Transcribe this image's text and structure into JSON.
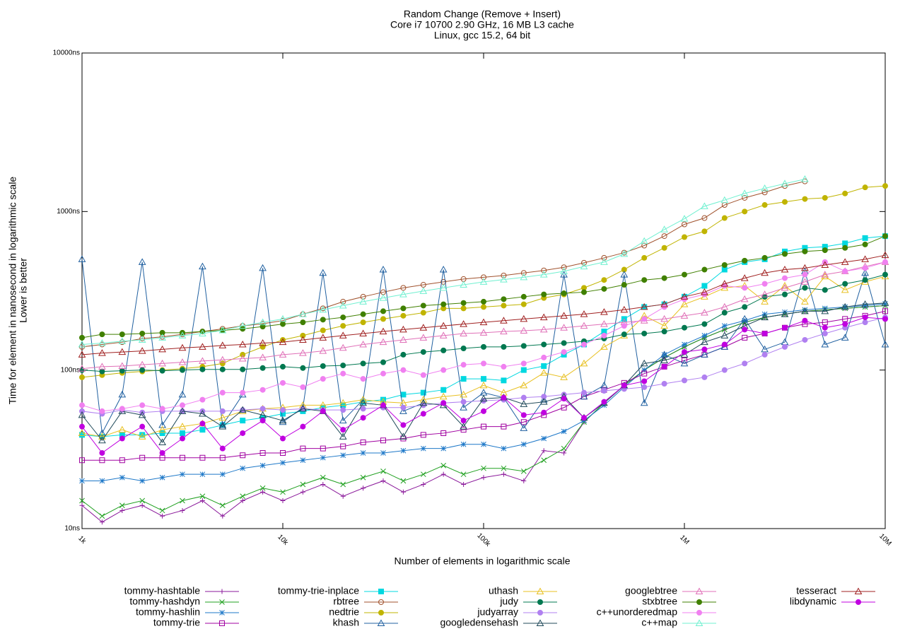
{
  "chart_data": {
    "type": "line",
    "title": [
      "Random Change (Remove + Insert)",
      "Core i7 10700 2.90 GHz, 16 MB L3 cache",
      "Linux, gcc 15.2, 64 bit"
    ],
    "xlabel": "Number of elements in logarithmic scale",
    "ylabel": [
      "Time for element in nanosecond in logarithmic scale",
      "Lower is better"
    ],
    "xlog": true,
    "ylog": true,
    "xlim": [
      1000,
      10000000
    ],
    "ylim": [
      10,
      10000
    ],
    "xticks": [
      {
        "value": 1000,
        "label": "1k"
      },
      {
        "value": 10000,
        "label": "10k"
      },
      {
        "value": 100000,
        "label": "100k"
      },
      {
        "value": 1000000,
        "label": "1M"
      },
      {
        "value": 10000000,
        "label": "10M"
      }
    ],
    "yticks": [
      {
        "value": 10,
        "label": "10ns"
      },
      {
        "value": 100,
        "label": "100ns"
      },
      {
        "value": 1000,
        "label": "1000ns"
      },
      {
        "value": 10000,
        "label": "10000ns"
      }
    ],
    "legend": "bottom",
    "x": [
      1000,
      1259,
      1585,
      1995,
      2512,
      3162,
      3981,
      5012,
      6310,
      7943,
      10000,
      12589,
      15849,
      19953,
      25119,
      31623,
      39811,
      50119,
      63096,
      79433,
      100000,
      125893,
      158489,
      199526,
      251189,
      316228,
      398107,
      501187,
      630957,
      794328,
      1000000,
      1258925,
      1584893,
      1995262,
      2511886,
      3162278,
      3981072,
      5011872,
      6309573,
      7943282,
      10000000
    ],
    "series": [
      {
        "name": "tommy-hashtable",
        "color": "#8b1a9b",
        "marker": "plus",
        "values": [
          14,
          11,
          13,
          14,
          12,
          13,
          15,
          12,
          15,
          17,
          15,
          17,
          19,
          16,
          18,
          20,
          17,
          19,
          22,
          19,
          21,
          22,
          20,
          31,
          30,
          47,
          62,
          80,
          100,
          120,
          140,
          160,
          180,
          200,
          215,
          225,
          235,
          240,
          245,
          250,
          255
        ]
      },
      {
        "name": "tommy-hashdyn",
        "color": "#20a020",
        "marker": "cross",
        "values": [
          15,
          12,
          14,
          15,
          13,
          15,
          16,
          14,
          16,
          18,
          17,
          19,
          21,
          19,
          21,
          23,
          20,
          22,
          25,
          22,
          24,
          24,
          23,
          27,
          32,
          47,
          62,
          80,
          100,
          120,
          140,
          160,
          180,
          200,
          215,
          225,
          235,
          240,
          245,
          250,
          255
        ]
      },
      {
        "name": "tommy-hashlin",
        "color": "#1e78c8",
        "marker": "star",
        "values": [
          20,
          20,
          21,
          20,
          21,
          22,
          22,
          22,
          24,
          25,
          26,
          27,
          28,
          29,
          30,
          30,
          31,
          32,
          32,
          34,
          34,
          32,
          34,
          37,
          41,
          48,
          60,
          78,
          100,
          125,
          145,
          165,
          190,
          205,
          225,
          232,
          240,
          245,
          250,
          255,
          262
        ]
      },
      {
        "name": "tommy-trie",
        "color": "#a000a0",
        "marker": "square",
        "values": [
          27,
          27,
          27,
          28,
          28,
          28,
          28,
          28,
          29,
          30,
          30,
          32,
          32,
          33,
          35,
          36,
          37,
          39,
          40,
          42,
          44,
          44,
          47,
          52,
          58,
          68,
          75,
          83,
          95,
          105,
          115,
          125,
          140,
          160,
          170,
          185,
          195,
          200,
          210,
          220,
          235
        ]
      },
      {
        "name": "tommy-trie-inplace",
        "color": "#00d8e0",
        "marker": "filled-square",
        "values": [
          39,
          38,
          39,
          39,
          40,
          40,
          42,
          45,
          48,
          50,
          53,
          55,
          58,
          60,
          63,
          65,
          70,
          72,
          75,
          88,
          88,
          86,
          100,
          106,
          125,
          145,
          175,
          210,
          250,
          260,
          290,
          340,
          430,
          480,
          500,
          560,
          590,
          600,
          630,
          680,
          700
        ]
      },
      {
        "name": "rbtree",
        "color": "#a0522d",
        "marker": "circle",
        "values": [
          140,
          145,
          150,
          158,
          162,
          168,
          175,
          182,
          190,
          196,
          205,
          225,
          245,
          270,
          290,
          310,
          330,
          345,
          360,
          375,
          385,
          395,
          410,
          425,
          445,
          475,
          510,
          550,
          610,
          700,
          830,
          910,
          1100,
          1220,
          1320,
          1450,
          1550,
          null,
          null,
          null,
          null
        ]
      },
      {
        "name": "nedtrie",
        "color": "#c0b400",
        "marker": "filled-circle",
        "values": [
          90,
          93,
          96,
          98,
          100,
          102,
          105,
          110,
          125,
          140,
          155,
          165,
          178,
          190,
          200,
          210,
          220,
          230,
          245,
          245,
          250,
          255,
          260,
          285,
          300,
          330,
          370,
          430,
          510,
          590,
          690,
          750,
          910,
          1000,
          1100,
          1150,
          1200,
          1220,
          1300,
          1420,
          1450
        ]
      },
      {
        "name": "khash",
        "color": "#2060a0",
        "marker": "triangle",
        "values": [
          500,
          40,
          70,
          480,
          45,
          70,
          450,
          45,
          70,
          440,
          47,
          58,
          410,
          48,
          65,
          430,
          55,
          62,
          430,
          58,
          72,
          67,
          43,
          65,
          400,
          68,
          80,
          400,
          62,
          125,
          110,
          125,
          140,
          210,
          135,
          150,
          420,
          145,
          160,
          410,
          145
        ]
      },
      {
        "name": "uthash",
        "color": "#e8c020",
        "marker": "triangle",
        "values": [
          40,
          38,
          42,
          38,
          42,
          44,
          46,
          50,
          55,
          57,
          58,
          60,
          60,
          62,
          65,
          63,
          62,
          65,
          68,
          70,
          80,
          72,
          80,
          96,
          90,
          110,
          140,
          165,
          220,
          190,
          260,
          290,
          330,
          340,
          270,
          340,
          270,
          390,
          320,
          360,
          390
        ]
      },
      {
        "name": "judy",
        "color": "#007850",
        "marker": "filled-circle",
        "values": [
          100,
          98,
          99,
          100,
          99,
          100,
          101,
          101,
          101,
          103,
          105,
          103,
          106,
          107,
          110,
          112,
          125,
          130,
          133,
          137,
          140,
          140,
          142,
          145,
          148,
          152,
          158,
          168,
          170,
          175,
          185,
          195,
          230,
          250,
          290,
          300,
          330,
          320,
          350,
          370,
          400
        ]
      },
      {
        "name": "judyarray",
        "color": "#b080f0",
        "marker": "filled-circle",
        "values": [
          55,
          53,
          56,
          54,
          55,
          55,
          55,
          55,
          56,
          57,
          56,
          57,
          56,
          56,
          57,
          58,
          58,
          60,
          62,
          63,
          64,
          65,
          67,
          68,
          70,
          72,
          74,
          76,
          78,
          82,
          86,
          90,
          100,
          110,
          125,
          140,
          155,
          170,
          185,
          200,
          215
        ]
      },
      {
        "name": "googledensehash",
        "color": "#204a5a",
        "marker": "triangle",
        "values": [
          52,
          36,
          55,
          52,
          35,
          55,
          53,
          44,
          56,
          52,
          48,
          57,
          55,
          38,
          62,
          60,
          38,
          62,
          60,
          44,
          66,
          67,
          61,
          63,
          68,
          50,
          62,
          80,
          110,
          115,
          125,
          150,
          165,
          190,
          215,
          225,
          235,
          235,
          250,
          260,
          265
        ]
      },
      {
        "name": "googlebtree",
        "color": "#e070b8",
        "marker": "triangle",
        "values": [
          102,
          105,
          106,
          108,
          110,
          112,
          114,
          116,
          118,
          120,
          125,
          128,
          132,
          138,
          145,
          150,
          155,
          160,
          165,
          170,
          172,
          175,
          177,
          180,
          185,
          190,
          195,
          200,
          205,
          210,
          220,
          230,
          250,
          280,
          300,
          330,
          360,
          400,
          420,
          450,
          480
        ]
      },
      {
        "name": "stxbtree",
        "color": "#408000",
        "marker": "filled-circle",
        "values": [
          160,
          168,
          168,
          170,
          172,
          172,
          175,
          178,
          182,
          188,
          195,
          200,
          208,
          215,
          225,
          235,
          245,
          255,
          260,
          265,
          270,
          280,
          290,
          300,
          305,
          310,
          325,
          345,
          370,
          380,
          400,
          430,
          460,
          490,
          510,
          540,
          560,
          570,
          590,
          620,
          700
        ]
      },
      {
        "name": "c++unorderedmap",
        "color": "#f080f0",
        "marker": "filled-circle",
        "values": [
          60,
          55,
          57,
          60,
          57,
          60,
          65,
          72,
          72,
          75,
          83,
          78,
          88,
          95,
          88,
          95,
          100,
          93,
          100,
          108,
          110,
          105,
          110,
          120,
          130,
          145,
          165,
          190,
          210,
          250,
          280,
          300,
          340,
          330,
          350,
          380,
          400,
          480,
          420,
          440,
          480
        ]
      },
      {
        "name": "c++map",
        "color": "#70f0d0",
        "marker": "triangle",
        "values": [
          145,
          148,
          152,
          155,
          160,
          165,
          170,
          178,
          190,
          200,
          210,
          225,
          240,
          255,
          270,
          285,
          300,
          315,
          330,
          345,
          360,
          372,
          385,
          400,
          420,
          450,
          480,
          540,
          650,
          770,
          900,
          1080,
          1180,
          1300,
          1400,
          1500,
          1600,
          null,
          null,
          null,
          null
        ]
      },
      {
        "name": "tesseract",
        "color": "#a02020",
        "marker": "triangle",
        "values": [
          125,
          128,
          130,
          132,
          135,
          138,
          140,
          143,
          145,
          148,
          150,
          155,
          160,
          165,
          170,
          175,
          180,
          185,
          190,
          195,
          200,
          205,
          210,
          215,
          220,
          225,
          232,
          240,
          250,
          260,
          290,
          310,
          350,
          380,
          410,
          430,
          440,
          460,
          480,
          500,
          530
        ]
      },
      {
        "name": "libdynamic",
        "color": "#c000e0",
        "marker": "filled-circle",
        "values": [
          44,
          30,
          37,
          44,
          30,
          37,
          46,
          32,
          40,
          48,
          37,
          44,
          55,
          42,
          50,
          60,
          45,
          53,
          62,
          48,
          55,
          67,
          52,
          54,
          66,
          50,
          63,
          80,
          85,
          105,
          130,
          135,
          145,
          180,
          170,
          185,
          205,
          185,
          195,
          215,
          210
        ]
      }
    ]
  }
}
